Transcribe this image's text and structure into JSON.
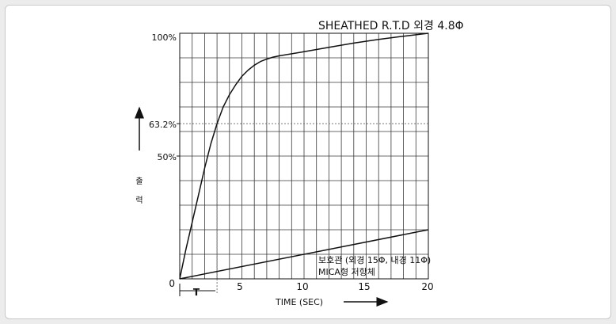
{
  "chart_data": {
    "type": "line",
    "title": "SHEATHED R.T.D 외경 4.8Φ",
    "xlabel": "TIME (SEC)",
    "ylabel": [
      "출",
      "력"
    ],
    "xlim": [
      0,
      20
    ],
    "ylim": [
      0,
      100
    ],
    "x_ticks": [
      "0",
      "5",
      "10",
      "15",
      "20"
    ],
    "y_ticks": [
      "100%",
      "63.2%",
      "50%"
    ],
    "origin_label": "0",
    "time_constant_label": "T",
    "time_constant_x": 3,
    "grid": true,
    "series": [
      {
        "name": "SHEATHED R.T.D 외경 4.8Φ",
        "x": [
          0,
          0.5,
          1,
          1.5,
          2,
          2.5,
          3,
          3.5,
          4,
          4.5,
          5,
          5.5,
          6,
          6.5,
          7,
          7.5,
          8,
          10,
          12,
          14,
          16,
          18,
          20
        ],
        "y": [
          0,
          12,
          23,
          34,
          45,
          55,
          63.2,
          70,
          75,
          79,
          82.5,
          85,
          87,
          88.5,
          89.5,
          90.3,
          90.8,
          92.5,
          94.3,
          96,
          97.5,
          98.8,
          100
        ]
      },
      {
        "name": "보호관 (외경 15Φ, 내경 11Φ) MICA형 저항체",
        "x": [
          0,
          20
        ],
        "y": [
          0,
          20
        ]
      }
    ],
    "series2_label_line1": "보호관 (외경 15Φ, 내경 11Φ)",
    "series2_label_line2": "MICA형 저항체"
  }
}
